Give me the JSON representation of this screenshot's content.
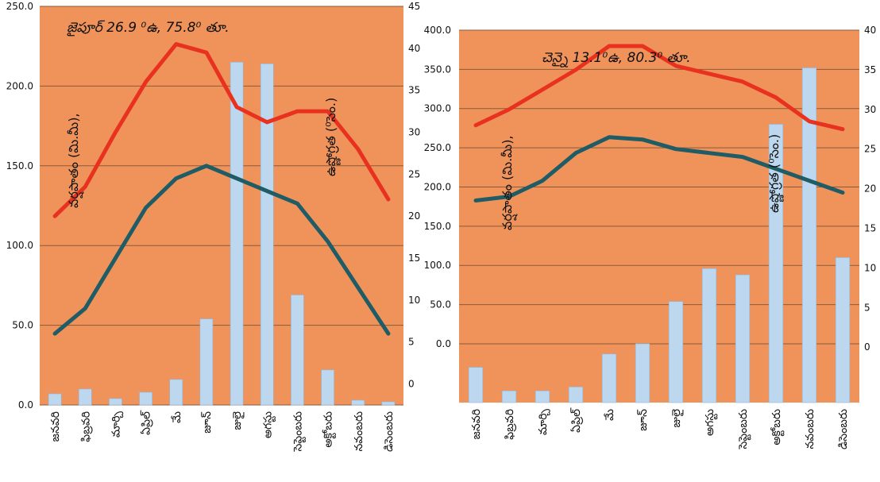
{
  "colors": {
    "plot_bg": "#F0935B",
    "rain_bar": "#BDD7EE",
    "max_temp_line": "#E8321F",
    "min_temp_line": "#1F5C66",
    "gridline": "#8A5A3A"
  },
  "chart_data": [
    {
      "type": "bar+line",
      "title": "జైపూర్ 26.9 ⁰ఉ, 75.8⁰ తూ.",
      "rain_label": "వర్షపాతం (మి.మీ),",
      "temp_label": "ఉష్ణోగ్రత (⁰సెం.)",
      "categories": [
        "జనవరి",
        "ఫిబ్రవరి",
        "మార్చి",
        "ఏప్రిల్",
        "మే",
        "జూన్",
        "జులై",
        "అగస్టు",
        "సెప్టెంబరు",
        "అక్టోబరు",
        "నవంబరు",
        "డిసెంబరు"
      ],
      "y_left": {
        "ticks": [
          "0.0",
          "50.0",
          "100.0",
          "150.0",
          "200.0",
          "250.0"
        ],
        "range": [
          0,
          250
        ]
      },
      "y_right": {
        "ticks": [
          "0",
          "5",
          "10",
          "15",
          "20",
          "25",
          "30",
          "35",
          "40",
          "45"
        ],
        "range": [
          -2.5,
          45
        ]
      },
      "series": [
        {
          "kind": "bar",
          "axis": "left",
          "values": [
            7,
            10,
            4,
            8,
            16,
            54,
            215,
            214,
            69,
            22,
            3,
            2
          ]
        },
        {
          "kind": "line",
          "role": "max",
          "axis": "right",
          "values": [
            20,
            23.5,
            30,
            36,
            40.5,
            39.5,
            33,
            31.2,
            32.5,
            32.5,
            28,
            22
          ]
        },
        {
          "kind": "line",
          "role": "min",
          "axis": "right",
          "values": [
            6,
            9,
            15,
            21,
            24.5,
            26,
            24.5,
            23,
            21.5,
            17,
            11.5,
            6
          ]
        }
      ]
    },
    {
      "type": "bar+line",
      "title": "చెన్నై 13.1⁰ఉ, 80.3⁰ తూ.",
      "rain_label": "వర్షపాతం (మి.మీ),",
      "temp_label": "ఉష్ణోగ్రత (⁰సెం.)",
      "categories": [
        "జనవరి",
        "ఫిబ్రవరి",
        "మార్చి",
        "ఏప్రిల్",
        "మే",
        "జూన్",
        "జులై",
        "అగస్టు",
        "సెప్టెంబరు",
        "అక్టోబరు",
        "నవంబరు",
        "డిసెంబరు"
      ],
      "y_left": {
        "ticks": [
          "0.0",
          "50.0",
          "100.0",
          "150.0",
          "200.0",
          "250.0",
          "300.0",
          "350.0",
          "400.0"
        ],
        "range": [
          -75,
          400
        ]
      },
      "y_right": {
        "ticks": [
          "0",
          "5",
          "10",
          "15",
          "20",
          "25",
          "30",
          "35",
          "40"
        ],
        "range": [
          -7,
          40
        ]
      },
      "series": [
        {
          "kind": "bar",
          "axis": "left",
          "values": [
            -30,
            -60,
            -60,
            -55,
            -13,
            0,
            54,
            96,
            88,
            280,
            352,
            110
          ]
        },
        {
          "kind": "line",
          "role": "max",
          "axis": "right",
          "values": [
            28,
            30,
            32.5,
            35,
            38,
            38,
            35.5,
            34.5,
            33.5,
            31.5,
            28.5,
            27.5
          ]
        },
        {
          "kind": "line",
          "role": "min",
          "axis": "right",
          "values": [
            18.5,
            19,
            21,
            24.5,
            26.5,
            26.2,
            25,
            24.5,
            24,
            22.5,
            21,
            19.5
          ]
        }
      ]
    }
  ]
}
